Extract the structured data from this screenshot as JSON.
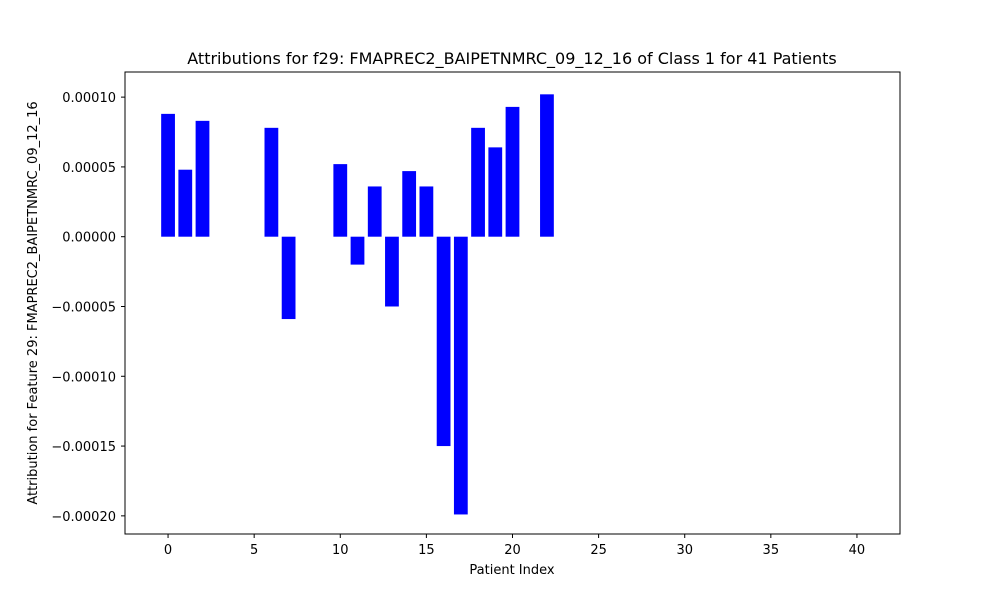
{
  "chart_data": {
    "type": "bar",
    "title": "Attributions for f29: FMAPREC2_BAIPETNMRC_09_12_16 of Class 1 for 41 Patients",
    "xlabel": "Patient Index",
    "ylabel": "Attribution for Feature 29: FMAPREC2_BAIPETNMRC_09_12_16",
    "bar_color": "#0000ff",
    "xlim": [
      -2.5,
      42.5
    ],
    "ylim": [
      -0.000213,
      0.000118
    ],
    "x_ticks": [
      0,
      5,
      10,
      15,
      20,
      25,
      30,
      35,
      40
    ],
    "x_tick_labels": [
      "0",
      "5",
      "10",
      "15",
      "20",
      "25",
      "30",
      "35",
      "40"
    ],
    "y_ticks": [
      0.0001,
      5e-05,
      0.0,
      -5e-05,
      -0.0001,
      -0.00015,
      -0.0002
    ],
    "y_tick_labels": [
      "0.00010",
      "0.00005",
      "0.00000",
      "−0.00005",
      "−0.00010",
      "−0.00015",
      "−0.00020"
    ],
    "grid": false,
    "x": [
      0,
      1,
      2,
      3,
      4,
      5,
      6,
      7,
      8,
      9,
      10,
      11,
      12,
      13,
      14,
      15,
      16,
      17,
      18,
      19,
      20,
      21,
      22,
      23,
      24,
      25,
      26,
      27,
      28,
      29,
      30,
      31,
      32,
      33,
      34,
      35,
      36,
      37,
      38,
      39,
      40
    ],
    "values": [
      8.8e-05,
      4.8e-05,
      8.3e-05,
      0,
      0,
      0,
      7.8e-05,
      -5.9e-05,
      0,
      0,
      5.2e-05,
      -2e-05,
      3.6e-05,
      -5e-05,
      4.7e-05,
      3.6e-05,
      -0.00015,
      -0.000199,
      7.8e-05,
      6.4e-05,
      9.3e-05,
      0,
      0.000102,
      0,
      0,
      0,
      0,
      0,
      0,
      0,
      0,
      0,
      0,
      0,
      0,
      0,
      0,
      0,
      0,
      0,
      0
    ]
  }
}
